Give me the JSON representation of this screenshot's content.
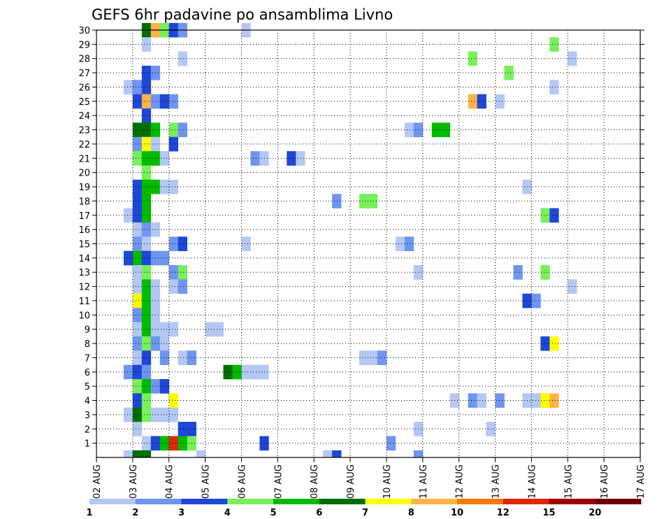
{
  "chart_data": {
    "type": "heatmap",
    "title": "GEFS 6hr padavine po ansamblima Livno",
    "xlabel": "",
    "ylabel": "",
    "x_ticks": [
      "02 AUG",
      "03 AUG",
      "04 AUG",
      "05 AUG",
      "06 AUG",
      "07 AUG",
      "08 AUG",
      "09 AUG",
      "10 AUG",
      "11 AUG",
      "12 AUG",
      "13 AUG",
      "14 AUG",
      "15 AUG",
      "16 AUG",
      "17 AUG"
    ],
    "y_ticks": [
      "1",
      "2",
      "3",
      "4",
      "5",
      "6",
      "7",
      "8",
      "9",
      "10",
      "11",
      "12",
      "13",
      "14",
      "15",
      "16",
      "17",
      "18",
      "19",
      "20",
      "21",
      "22",
      "23",
      "24",
      "25",
      "26",
      "27",
      "28",
      "29",
      "30"
    ],
    "grid": true,
    "x_step_hours": 6,
    "legend_position": "bottom",
    "colorbar": {
      "labels": [
        "1",
        "2",
        "3",
        "4",
        "5",
        "6",
        "7",
        "8",
        "10",
        "12",
        "15",
        "20"
      ],
      "colors": [
        "#b4c8f5",
        "#6e96f0",
        "#1e46d7",
        "#78f05a",
        "#00bb00",
        "#006e00",
        "#ffff00",
        "#ffb446",
        "#ff7800",
        "#dc2800",
        "#a00000"
      ],
      "final_color": "#6e0000"
    },
    "cells": [
      [
        30,
        5,
        6
      ],
      [
        30,
        6,
        8
      ],
      [
        30,
        7,
        4
      ],
      [
        30,
        8,
        3
      ],
      [
        30,
        9,
        2
      ],
      [
        30,
        16,
        1
      ],
      [
        29,
        5,
        1
      ],
      [
        29,
        50,
        4
      ],
      [
        28,
        9,
        1
      ],
      [
        28,
        41,
        4
      ],
      [
        28,
        52,
        1
      ],
      [
        27,
        5,
        3
      ],
      [
        27,
        6,
        2
      ],
      [
        27,
        45,
        4
      ],
      [
        26,
        3,
        1
      ],
      [
        26,
        4,
        2
      ],
      [
        26,
        5,
        3
      ],
      [
        26,
        50,
        1
      ],
      [
        25,
        4,
        3
      ],
      [
        25,
        5,
        8
      ],
      [
        25,
        6,
        2
      ],
      [
        25,
        7,
        3
      ],
      [
        25,
        8,
        2
      ],
      [
        25,
        41,
        8
      ],
      [
        25,
        42,
        3
      ],
      [
        25,
        44,
        1
      ],
      [
        24,
        5,
        3
      ],
      [
        23,
        4,
        6
      ],
      [
        23,
        5,
        6
      ],
      [
        23,
        6,
        5
      ],
      [
        23,
        8,
        4
      ],
      [
        23,
        9,
        2
      ],
      [
        23,
        34,
        1
      ],
      [
        23,
        35,
        2
      ],
      [
        23,
        37,
        5
      ],
      [
        23,
        38,
        5
      ],
      [
        22,
        4,
        2
      ],
      [
        22,
        5,
        7
      ],
      [
        22,
        6,
        1
      ],
      [
        22,
        8,
        3
      ],
      [
        21,
        4,
        4
      ],
      [
        21,
        5,
        5
      ],
      [
        21,
        6,
        5
      ],
      [
        21,
        7,
        1
      ],
      [
        21,
        17,
        2
      ],
      [
        21,
        18,
        1
      ],
      [
        21,
        21,
        3
      ],
      [
        21,
        22,
        1
      ],
      [
        20,
        5,
        4
      ],
      [
        19,
        4,
        3
      ],
      [
        19,
        5,
        5
      ],
      [
        19,
        6,
        5
      ],
      [
        19,
        7,
        1
      ],
      [
        19,
        8,
        1
      ],
      [
        19,
        47,
        1
      ],
      [
        18,
        4,
        3
      ],
      [
        18,
        5,
        5
      ],
      [
        18,
        26,
        2
      ],
      [
        18,
        29,
        4
      ],
      [
        18,
        30,
        4
      ],
      [
        17,
        3,
        1
      ],
      [
        17,
        4,
        3
      ],
      [
        17,
        5,
        5
      ],
      [
        17,
        49,
        4
      ],
      [
        17,
        50,
        3
      ],
      [
        16,
        4,
        1
      ],
      [
        16,
        5,
        2
      ],
      [
        16,
        6,
        1
      ],
      [
        15,
        4,
        2
      ],
      [
        15,
        5,
        1
      ],
      [
        15,
        8,
        2
      ],
      [
        15,
        9,
        3
      ],
      [
        15,
        16,
        1
      ],
      [
        15,
        33,
        1
      ],
      [
        15,
        34,
        2
      ],
      [
        14,
        3,
        3
      ],
      [
        14,
        4,
        5
      ],
      [
        14,
        5,
        3
      ],
      [
        14,
        6,
        2
      ],
      [
        14,
        7,
        2
      ],
      [
        13,
        4,
        1
      ],
      [
        13,
        5,
        4
      ],
      [
        13,
        8,
        2
      ],
      [
        13,
        9,
        4
      ],
      [
        13,
        35,
        1
      ],
      [
        13,
        46,
        2
      ],
      [
        13,
        49,
        4
      ],
      [
        12,
        4,
        1
      ],
      [
        12,
        5,
        5
      ],
      [
        12,
        6,
        1
      ],
      [
        12,
        8,
        1
      ],
      [
        12,
        9,
        2
      ],
      [
        12,
        52,
        1
      ],
      [
        11,
        4,
        7
      ],
      [
        11,
        5,
        5
      ],
      [
        11,
        6,
        1
      ],
      [
        11,
        47,
        3
      ],
      [
        11,
        48,
        2
      ],
      [
        10,
        4,
        2
      ],
      [
        10,
        5,
        5
      ],
      [
        10,
        6,
        1
      ],
      [
        9,
        4,
        1
      ],
      [
        9,
        5,
        5
      ],
      [
        9,
        6,
        1
      ],
      [
        9,
        7,
        1
      ],
      [
        9,
        8,
        1
      ],
      [
        9,
        12,
        1
      ],
      [
        9,
        13,
        1
      ],
      [
        8,
        4,
        2
      ],
      [
        8,
        5,
        4
      ],
      [
        8,
        6,
        2
      ],
      [
        8,
        7,
        1
      ],
      [
        8,
        49,
        3
      ],
      [
        8,
        50,
        7
      ],
      [
        7,
        4,
        1
      ],
      [
        7,
        5,
        3
      ],
      [
        7,
        7,
        2
      ],
      [
        7,
        9,
        1
      ],
      [
        7,
        10,
        2
      ],
      [
        7,
        29,
        1
      ],
      [
        7,
        30,
        1
      ],
      [
        7,
        31,
        2
      ],
      [
        6,
        3,
        2
      ],
      [
        6,
        4,
        3
      ],
      [
        6,
        5,
        2
      ],
      [
        6,
        14,
        6
      ],
      [
        6,
        15,
        5
      ],
      [
        6,
        16,
        1
      ],
      [
        6,
        17,
        1
      ],
      [
        6,
        18,
        1
      ],
      [
        5,
        4,
        4
      ],
      [
        5,
        5,
        5
      ],
      [
        5,
        6,
        2
      ],
      [
        5,
        7,
        3
      ],
      [
        4,
        4,
        3
      ],
      [
        4,
        5,
        4
      ],
      [
        4,
        8,
        7
      ],
      [
        4,
        39,
        1
      ],
      [
        4,
        41,
        2
      ],
      [
        4,
        42,
        1
      ],
      [
        4,
        44,
        2
      ],
      [
        4,
        47,
        1
      ],
      [
        4,
        48,
        1
      ],
      [
        4,
        49,
        7
      ],
      [
        4,
        50,
        8
      ],
      [
        3,
        3,
        1
      ],
      [
        3,
        4,
        6
      ],
      [
        3,
        5,
        4
      ],
      [
        3,
        6,
        1
      ],
      [
        3,
        7,
        1
      ],
      [
        3,
        8,
        1
      ],
      [
        2,
        4,
        1
      ],
      [
        2,
        9,
        3
      ],
      [
        2,
        10,
        3
      ],
      [
        2,
        35,
        1
      ],
      [
        2,
        43,
        1
      ],
      [
        1,
        5,
        1
      ],
      [
        1,
        6,
        3
      ],
      [
        1,
        7,
        5
      ],
      [
        1,
        8,
        10
      ],
      [
        1,
        9,
        5
      ],
      [
        1,
        10,
        4
      ],
      [
        1,
        18,
        3
      ],
      [
        1,
        32,
        2
      ],
      [
        0.5,
        3,
        1
      ],
      [
        0.5,
        4,
        6
      ],
      [
        0.5,
        5,
        6
      ],
      [
        0.5,
        11,
        1
      ],
      [
        0.5,
        25,
        1
      ],
      [
        0.5,
        26,
        3
      ],
      [
        0.5,
        35,
        2
      ]
    ]
  }
}
